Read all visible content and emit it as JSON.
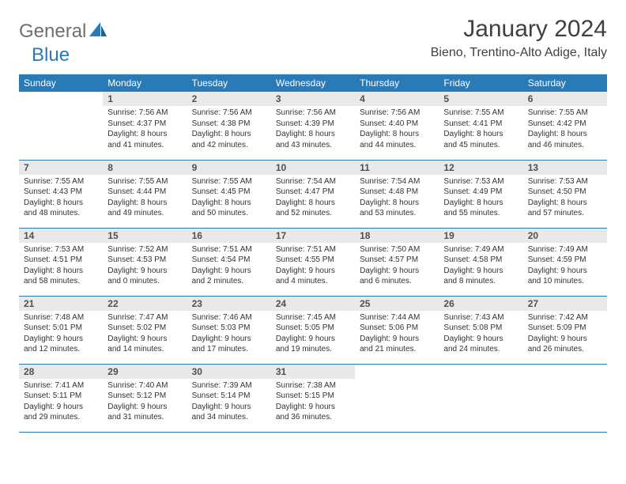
{
  "logo": {
    "general": "General",
    "blue": "Blue"
  },
  "title": "January 2024",
  "location": "Bieno, Trentino-Alto Adige, Italy",
  "colors": {
    "header_bg": "#2a7ab8",
    "header_text": "#ffffff",
    "daynum_bg": "#e9e9e9",
    "daynum_text": "#505050",
    "body_text": "#333333",
    "title_text": "#404040",
    "row_border": "#2a7ab8",
    "logo_gray": "#6d6e71",
    "logo_blue": "#2a7ab8"
  },
  "weekdays": [
    "Sunday",
    "Monday",
    "Tuesday",
    "Wednesday",
    "Thursday",
    "Friday",
    "Saturday"
  ],
  "weeks": [
    [
      null,
      {
        "n": "1",
        "sr": "7:56 AM",
        "ss": "4:37 PM",
        "dl": "8 hours and 41 minutes."
      },
      {
        "n": "2",
        "sr": "7:56 AM",
        "ss": "4:38 PM",
        "dl": "8 hours and 42 minutes."
      },
      {
        "n": "3",
        "sr": "7:56 AM",
        "ss": "4:39 PM",
        "dl": "8 hours and 43 minutes."
      },
      {
        "n": "4",
        "sr": "7:56 AM",
        "ss": "4:40 PM",
        "dl": "8 hours and 44 minutes."
      },
      {
        "n": "5",
        "sr": "7:55 AM",
        "ss": "4:41 PM",
        "dl": "8 hours and 45 minutes."
      },
      {
        "n": "6",
        "sr": "7:55 AM",
        "ss": "4:42 PM",
        "dl": "8 hours and 46 minutes."
      }
    ],
    [
      {
        "n": "7",
        "sr": "7:55 AM",
        "ss": "4:43 PM",
        "dl": "8 hours and 48 minutes."
      },
      {
        "n": "8",
        "sr": "7:55 AM",
        "ss": "4:44 PM",
        "dl": "8 hours and 49 minutes."
      },
      {
        "n": "9",
        "sr": "7:55 AM",
        "ss": "4:45 PM",
        "dl": "8 hours and 50 minutes."
      },
      {
        "n": "10",
        "sr": "7:54 AM",
        "ss": "4:47 PM",
        "dl": "8 hours and 52 minutes."
      },
      {
        "n": "11",
        "sr": "7:54 AM",
        "ss": "4:48 PM",
        "dl": "8 hours and 53 minutes."
      },
      {
        "n": "12",
        "sr": "7:53 AM",
        "ss": "4:49 PM",
        "dl": "8 hours and 55 minutes."
      },
      {
        "n": "13",
        "sr": "7:53 AM",
        "ss": "4:50 PM",
        "dl": "8 hours and 57 minutes."
      }
    ],
    [
      {
        "n": "14",
        "sr": "7:53 AM",
        "ss": "4:51 PM",
        "dl": "8 hours and 58 minutes."
      },
      {
        "n": "15",
        "sr": "7:52 AM",
        "ss": "4:53 PM",
        "dl": "9 hours and 0 minutes."
      },
      {
        "n": "16",
        "sr": "7:51 AM",
        "ss": "4:54 PM",
        "dl": "9 hours and 2 minutes."
      },
      {
        "n": "17",
        "sr": "7:51 AM",
        "ss": "4:55 PM",
        "dl": "9 hours and 4 minutes."
      },
      {
        "n": "18",
        "sr": "7:50 AM",
        "ss": "4:57 PM",
        "dl": "9 hours and 6 minutes."
      },
      {
        "n": "19",
        "sr": "7:49 AM",
        "ss": "4:58 PM",
        "dl": "9 hours and 8 minutes."
      },
      {
        "n": "20",
        "sr": "7:49 AM",
        "ss": "4:59 PM",
        "dl": "9 hours and 10 minutes."
      }
    ],
    [
      {
        "n": "21",
        "sr": "7:48 AM",
        "ss": "5:01 PM",
        "dl": "9 hours and 12 minutes."
      },
      {
        "n": "22",
        "sr": "7:47 AM",
        "ss": "5:02 PM",
        "dl": "9 hours and 14 minutes."
      },
      {
        "n": "23",
        "sr": "7:46 AM",
        "ss": "5:03 PM",
        "dl": "9 hours and 17 minutes."
      },
      {
        "n": "24",
        "sr": "7:45 AM",
        "ss": "5:05 PM",
        "dl": "9 hours and 19 minutes."
      },
      {
        "n": "25",
        "sr": "7:44 AM",
        "ss": "5:06 PM",
        "dl": "9 hours and 21 minutes."
      },
      {
        "n": "26",
        "sr": "7:43 AM",
        "ss": "5:08 PM",
        "dl": "9 hours and 24 minutes."
      },
      {
        "n": "27",
        "sr": "7:42 AM",
        "ss": "5:09 PM",
        "dl": "9 hours and 26 minutes."
      }
    ],
    [
      {
        "n": "28",
        "sr": "7:41 AM",
        "ss": "5:11 PM",
        "dl": "9 hours and 29 minutes."
      },
      {
        "n": "29",
        "sr": "7:40 AM",
        "ss": "5:12 PM",
        "dl": "9 hours and 31 minutes."
      },
      {
        "n": "30",
        "sr": "7:39 AM",
        "ss": "5:14 PM",
        "dl": "9 hours and 34 minutes."
      },
      {
        "n": "31",
        "sr": "7:38 AM",
        "ss": "5:15 PM",
        "dl": "9 hours and 36 minutes."
      },
      null,
      null,
      null
    ]
  ]
}
